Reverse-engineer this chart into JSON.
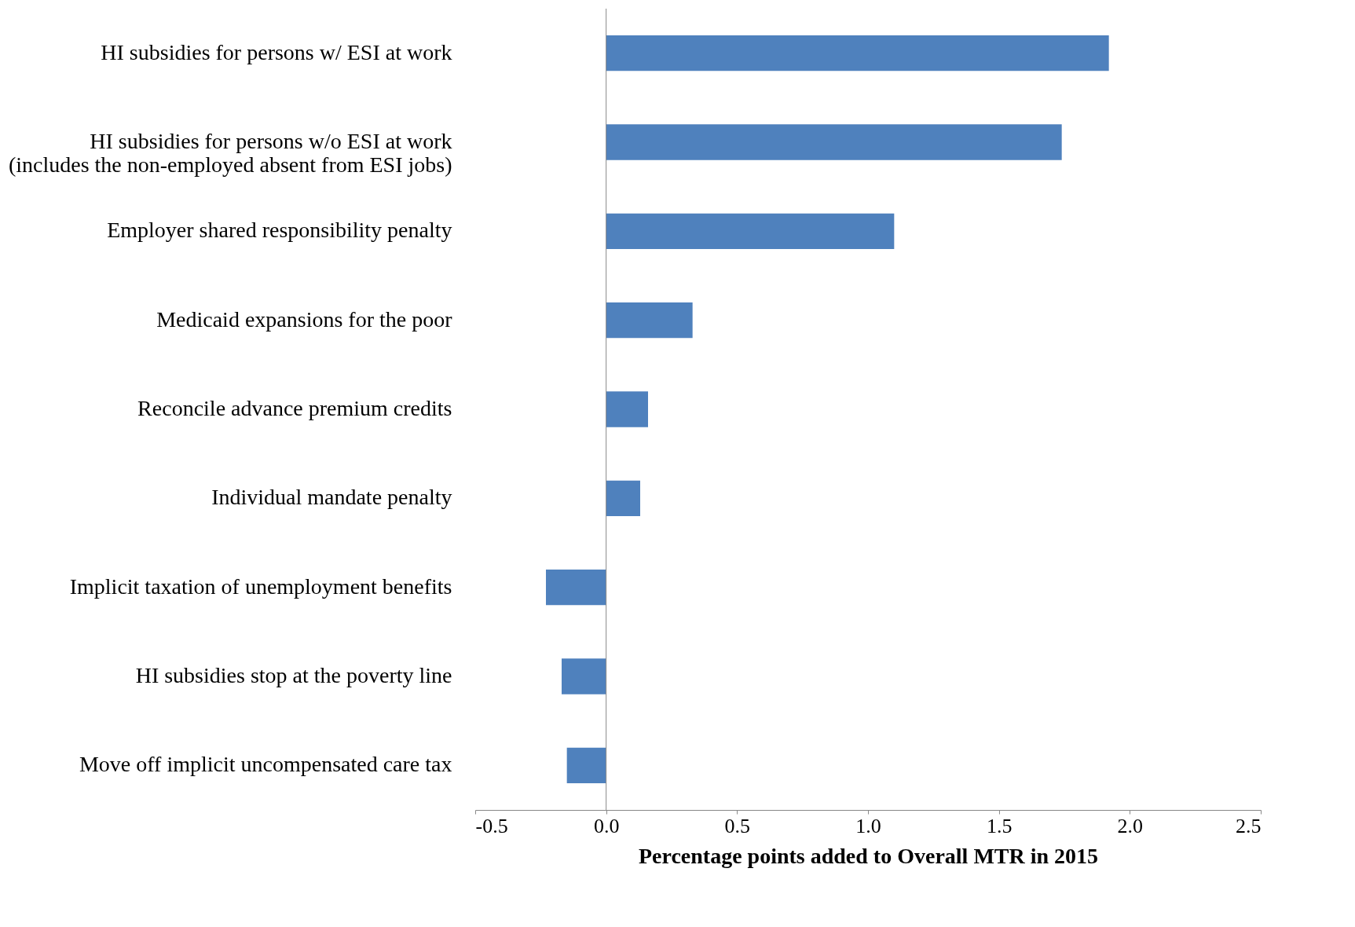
{
  "chart_data": {
    "type": "bar",
    "orientation": "horizontal",
    "xlabel": "Percentage points added to Overall MTR in 2015",
    "categories": [
      "HI subsidies for persons w/ ESI at work",
      "HI subsidies for persons w/o ESI at work\n(includes the non-employed absent from ESI jobs)",
      "Employer shared responsibility penalty",
      "Medicaid expansions for the poor",
      "Reconcile advance premium credits",
      "Individual mandate penalty",
      "Implicit taxation of unemployment benefits",
      "HI subsidies stop at the poverty line",
      "Move off implicit uncompensated care tax"
    ],
    "values": [
      1.92,
      1.74,
      1.1,
      0.33,
      0.16,
      0.13,
      -0.23,
      -0.17,
      -0.15
    ],
    "color": "#4f81bd",
    "xlim": [
      -0.5,
      2.5
    ],
    "xticks": [
      -0.5,
      {
        "value": 0,
        "label": "0.0"
      },
      0.5,
      {
        "value": 1,
        "label": "1.0"
      },
      1.5,
      {
        "value": 2,
        "label": "2.0"
      },
      2.5
    ],
    "tick_labels": "xy"
  }
}
